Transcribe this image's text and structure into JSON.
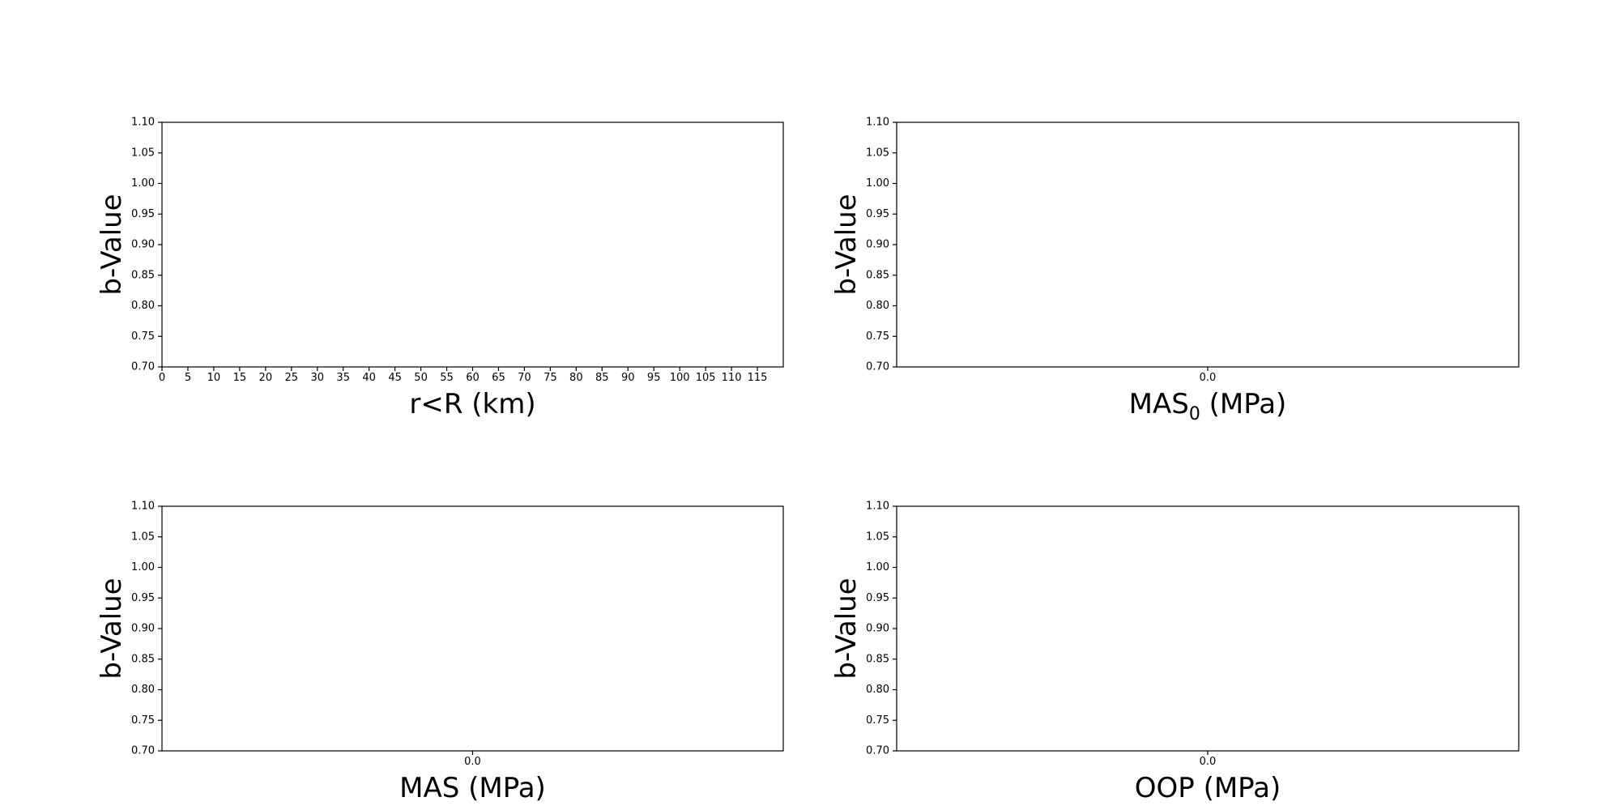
{
  "chart_data": [
    {
      "type": "scatter",
      "xlabel": "r<R (km)",
      "ylabel": "b-Value",
      "ylim": [
        0.7,
        1.1
      ],
      "xlim": [
        0,
        120
      ],
      "x_ticks": [
        "0",
        "5",
        "10",
        "15",
        "20",
        "25",
        "30",
        "35",
        "40",
        "45",
        "50",
        "55",
        "60",
        "65",
        "70",
        "75",
        "80",
        "85",
        "90",
        "95",
        "100",
        "105",
        "110",
        "115"
      ],
      "y_ticks": [
        "0.70",
        "0.75",
        "0.80",
        "0.85",
        "0.90",
        "0.95",
        "1.00",
        "1.05",
        "1.10"
      ],
      "series": []
    },
    {
      "type": "scatter",
      "xlabel": "MAS",
      "xlabel_sub": "0",
      "xlabel_suffix": " (MPa)",
      "ylabel": "b-Value",
      "ylim": [
        0.7,
        1.1
      ],
      "xlim": [
        -0.06,
        0.06
      ],
      "x_ticks": [
        "0.0"
      ],
      "y_ticks": [
        "0.70",
        "0.75",
        "0.80",
        "0.85",
        "0.90",
        "0.95",
        "1.00",
        "1.05",
        "1.10"
      ],
      "series": []
    },
    {
      "type": "scatter",
      "xlabel": "MAS (MPa)",
      "ylabel": "b-Value",
      "ylim": [
        0.7,
        1.1
      ],
      "xlim": [
        -0.06,
        0.06
      ],
      "x_ticks": [
        "0.0"
      ],
      "y_ticks": [
        "0.70",
        "0.75",
        "0.80",
        "0.85",
        "0.90",
        "0.95",
        "1.00",
        "1.05",
        "1.10"
      ],
      "series": []
    },
    {
      "type": "scatter",
      "xlabel": "OOP (MPa)",
      "ylabel": "b-Value",
      "ylim": [
        0.7,
        1.1
      ],
      "xlim": [
        -0.06,
        0.06
      ],
      "x_ticks": [
        "0.0"
      ],
      "y_ticks": [
        "0.70",
        "0.75",
        "0.80",
        "0.85",
        "0.90",
        "0.95",
        "1.00",
        "1.05",
        "1.10"
      ],
      "series": []
    }
  ]
}
